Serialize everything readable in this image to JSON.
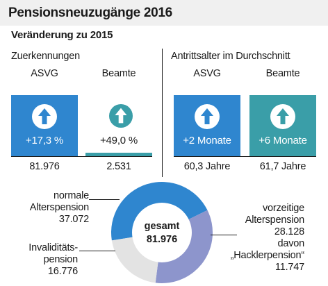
{
  "title": "Pensionsneuzugänge 2016",
  "subtitle": "Veränderung zu 2015",
  "sections": {
    "left_label": "Zuerkennungen",
    "right_label": "Antrittsalter im Durchschnitt"
  },
  "columns": [
    {
      "header": "ASVG",
      "change": "+17,3 %",
      "value": "81.976",
      "color": "#2f86cf"
    },
    {
      "header": "Beamte",
      "change": "+49,0 %",
      "value": "2.531",
      "color": "#3a9ea8"
    },
    {
      "header": "ASVG",
      "change": "+2 Monate",
      "value": "60,3 Jahre",
      "color": "#2f86cf"
    },
    {
      "header": "Beamte",
      "change": "+6 Monate",
      "value": "61,7 Jahre",
      "color": "#3a9ea8"
    }
  ],
  "icons": [
    "arrow-up-icon"
  ],
  "chart_data": {
    "type": "pie",
    "center_label": "gesamt",
    "center_value": "81.976",
    "total": 81976,
    "slices": [
      {
        "label_line1": "normale",
        "label_line2": "Alterspension",
        "value_text": "37.072",
        "value": 37072,
        "color": "#2f86cf"
      },
      {
        "label_line1": "vorzeitige",
        "label_line2": "Alterspension",
        "value_text": "28.128",
        "value": 28128,
        "color": "#8d95cc"
      },
      {
        "label_line1": "Invaliditäts-",
        "label_line2": "pension",
        "value_text": "16.776",
        "value": 16776,
        "color": "#e3e3e3"
      }
    ],
    "annotation": {
      "line1": "davon",
      "line2": "„Hacklerpension“",
      "value_text": "11.747",
      "value": 11747
    }
  }
}
